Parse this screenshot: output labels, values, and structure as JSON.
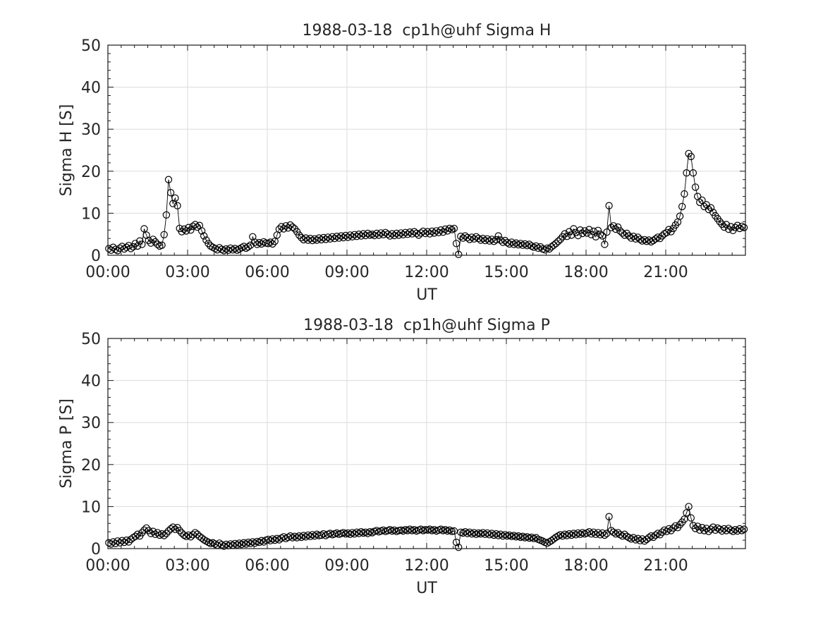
{
  "figure": {
    "background": "#ffffff",
    "colors": {
      "axes": "#1a1a1a",
      "text": "#262626",
      "grid": "#dbdbdb",
      "line": "#000000",
      "marker": "#000000"
    }
  },
  "chart_data": [
    {
      "type": "line-scatter",
      "title": "1988-03-18  cp1h@uhf Sigma H",
      "xlabel": "UT",
      "ylabel": "Sigma H [S]",
      "xlim_minutes": [
        0,
        1440
      ],
      "ylim": [
        0,
        50
      ],
      "xtick_minutes": [
        0,
        180,
        360,
        540,
        720,
        900,
        1080,
        1260
      ],
      "xtick_labels": [
        "00:00",
        "03:00",
        "06:00",
        "09:00",
        "12:00",
        "15:00",
        "18:00",
        "21:00"
      ],
      "xminor_step_minutes": 30,
      "yticks": [
        0,
        10,
        20,
        30,
        40,
        50
      ],
      "yminor_step": 2,
      "grid": true,
      "legend": "none",
      "marker": "open-circle",
      "x_start_minutes": 2,
      "x_step_minutes": 5,
      "values": [
        1.6,
        1.2,
        1.9,
        1.4,
        1.1,
        1.7,
        2.1,
        1.5,
        1.9,
        2.3,
        1.6,
        2.0,
        2.8,
        2.2,
        3.4,
        2.6,
        6.3,
        4.8,
        3.5,
        2.9,
        3.8,
        3.2,
        2.6,
        2.2,
        2.4,
        4.9,
        9.6,
        18.0,
        14.9,
        12.3,
        13.6,
        11.8,
        6.4,
        5.6,
        6.2,
        5.8,
        6.6,
        6.0,
        6.9,
        7.3,
        6.7,
        7.1,
        5.8,
        4.6,
        3.6,
        2.8,
        2.2,
        1.9,
        1.6,
        1.3,
        1.8,
        1.4,
        1.1,
        1.5,
        1.2,
        1.7,
        1.3,
        1.6,
        1.2,
        1.5,
        1.8,
        2.1,
        1.7,
        2.0,
        2.4,
        4.4,
        3.1,
        2.6,
        3.0,
        2.7,
        3.2,
        2.9,
        2.8,
        3.1,
        2.7,
        3.3,
        4.8,
        6.2,
        6.8,
        6.3,
        7.0,
        6.5,
        7.2,
        6.7,
        6.3,
        5.6,
        4.8,
        4.2,
        3.7,
        4.1,
        3.6,
        4.0,
        3.5,
        3.9,
        3.6,
        4.1,
        3.7,
        4.2,
        3.8,
        4.3,
        3.9,
        4.4,
        4.0,
        4.5,
        4.1,
        4.6,
        4.2,
        4.7,
        4.3,
        4.8,
        4.4,
        4.9,
        4.5,
        5.0,
        4.6,
        5.1,
        4.7,
        5.2,
        4.8,
        5.0,
        4.7,
        5.2,
        4.8,
        5.3,
        4.9,
        5.4,
        5.0,
        4.6,
        5.1,
        4.7,
        5.2,
        4.8,
        5.3,
        4.9,
        5.4,
        5.0,
        5.5,
        5.1,
        5.6,
        5.2,
        4.8,
        5.3,
        5.7,
        5.2,
        5.6,
        5.1,
        5.7,
        5.3,
        5.8,
        5.4,
        6.0,
        5.5,
        6.2,
        5.8,
        6.4,
        6.1,
        6.4,
        2.8,
        0.2,
        4.5,
        4.1,
        4.6,
        4.2,
        3.8,
        4.3,
        3.9,
        4.4,
        4.0,
        3.6,
        4.0,
        3.5,
        3.9,
        3.4,
        3.8,
        3.3,
        3.7,
        4.6,
        3.6,
        3.1,
        3.5,
        3.0,
        2.7,
        3.1,
        2.6,
        2.9,
        2.5,
        2.8,
        2.4,
        2.7,
        2.3,
        2.6,
        2.2,
        1.9,
        2.2,
        1.7,
        2.0,
        1.5,
        1.3,
        1.7,
        1.5,
        2.0,
        2.4,
        2.8,
        3.3,
        3.8,
        4.4,
        5.1,
        4.5,
        5.6,
        4.8,
        6.3,
        5.4,
        4.7,
        6.0,
        5.2,
        5.8,
        5.3,
        6.1,
        4.9,
        5.7,
        4.4,
        5.9,
        5.0,
        4.6,
        2.6,
        5.5,
        11.8,
        6.6,
        7.0,
        6.2,
        6.7,
        5.8,
        5.3,
        4.8,
        5.2,
        4.6,
        4.1,
        4.5,
        3.9,
        4.3,
        3.8,
        3.4,
        3.7,
        3.3,
        3.6,
        3.2,
        3.5,
        3.9,
        4.3,
        4.0,
        4.6,
        5.1,
        5.4,
        6.1,
        5.6,
        6.4,
        7.2,
        7.9,
        9.3,
        11.6,
        14.6,
        19.6,
        24.2,
        23.5,
        19.6,
        16.2,
        14.0,
        12.6,
        13.1,
        11.6,
        12.0,
        10.9,
        11.3,
        10.2,
        9.4,
        8.7,
        8.0,
        7.4,
        6.7,
        7.3,
        6.2,
        6.8,
        5.9,
        6.6,
        7.1,
        6.4,
        6.9,
        6.6
      ]
    },
    {
      "type": "line-scatter",
      "title": "1988-03-18  cp1h@uhf Sigma P",
      "xlabel": "UT",
      "ylabel": "Sigma P [S]",
      "xlim_minutes": [
        0,
        1440
      ],
      "ylim": [
        0,
        50
      ],
      "xtick_minutes": [
        0,
        180,
        360,
        540,
        720,
        900,
        1080,
        1260
      ],
      "xtick_labels": [
        "00:00",
        "03:00",
        "06:00",
        "09:00",
        "12:00",
        "15:00",
        "18:00",
        "21:00"
      ],
      "xminor_step_minutes": 30,
      "yticks": [
        0,
        10,
        20,
        30,
        40,
        50
      ],
      "yminor_step": 2,
      "grid": true,
      "legend": "none",
      "marker": "open-circle",
      "x_start_minutes": 2,
      "x_step_minutes": 5,
      "values": [
        1.4,
        1.1,
        1.6,
        1.2,
        1.8,
        1.4,
        1.9,
        1.5,
        2.0,
        1.6,
        2.2,
        2.6,
        2.9,
        3.4,
        3.0,
        3.8,
        4.4,
        4.9,
        4.3,
        3.6,
        4.1,
        3.4,
        3.8,
        3.2,
        3.5,
        3.1,
        3.6,
        4.2,
        4.7,
        5.1,
        4.6,
        5.0,
        4.3,
        3.7,
        3.2,
        2.9,
        3.2,
        2.8,
        3.3,
        3.8,
        3.4,
        2.9,
        2.5,
        2.1,
        1.8,
        1.5,
        1.2,
        1.4,
        1.1,
        0.8,
        1.3,
        0.9,
        0.6,
        1.0,
        0.7,
        1.1,
        0.8,
        1.2,
        0.9,
        1.3,
        1.0,
        1.4,
        1.1,
        1.5,
        1.2,
        1.6,
        1.3,
        1.7,
        1.5,
        1.9,
        1.6,
        2.0,
        2.2,
        1.9,
        2.3,
        2.0,
        2.4,
        2.1,
        2.5,
        2.8,
        2.4,
        2.7,
        3.0,
        2.6,
        2.9,
        2.6,
        3.0,
        2.7,
        3.1,
        2.8,
        3.2,
        2.9,
        3.3,
        3.0,
        3.4,
        3.1,
        3.2,
        3.5,
        3.1,
        3.4,
        3.6,
        3.3,
        3.5,
        3.7,
        3.4,
        3.6,
        3.8,
        3.5,
        3.7,
        3.4,
        3.8,
        3.5,
        3.9,
        3.6,
        4.0,
        3.7,
        3.9,
        3.6,
        4.0,
        3.8,
        4.1,
        4.3,
        4.0,
        4.2,
        4.4,
        4.1,
        4.3,
        4.5,
        4.2,
        4.4,
        4.1,
        4.3,
        4.4,
        4.2,
        4.5,
        4.3,
        4.6,
        4.3,
        4.5,
        4.2,
        4.4,
        4.6,
        4.3,
        4.5,
        4.4,
        4.6,
        4.3,
        4.5,
        4.2,
        4.4,
        4.6,
        4.3,
        4.5,
        4.2,
        4.4,
        4.1,
        4.2,
        1.5,
        0.3,
        3.9,
        3.7,
        4.0,
        3.6,
        3.9,
        3.5,
        3.8,
        3.4,
        3.7,
        3.5,
        3.8,
        3.4,
        3.7,
        3.3,
        3.6,
        3.2,
        3.5,
        3.1,
        3.4,
        3.0,
        3.3,
        3.0,
        3.2,
        2.9,
        3.1,
        2.8,
        3.0,
        2.7,
        2.9,
        2.6,
        2.8,
        2.5,
        2.7,
        2.4,
        2.6,
        2.2,
        2.0,
        1.8,
        1.5,
        1.3,
        1.6,
        1.9,
        2.3,
        2.7,
        3.0,
        3.3,
        3.0,
        3.4,
        3.1,
        3.5,
        3.2,
        3.6,
        3.3,
        3.7,
        3.4,
        3.8,
        3.5,
        3.7,
        4.0,
        3.5,
        3.9,
        3.4,
        3.8,
        3.3,
        3.7,
        3.2,
        3.6,
        7.6,
        4.3,
        3.9,
        3.5,
        3.8,
        3.3,
        3.0,
        3.4,
        2.9,
        2.6,
        2.3,
        2.6,
        2.1,
        2.4,
        1.9,
        2.3,
        1.8,
        2.2,
        2.6,
        3.0,
        2.7,
        3.2,
        3.6,
        3.3,
        3.9,
        4.4,
        4.1,
        4.7,
        4.3,
        4.9,
        5.4,
        5.0,
        5.7,
        6.3,
        7.0,
        8.5,
        10.0,
        7.3,
        5.5,
        4.8,
        5.3,
        4.4,
        5.0,
        4.3,
        4.8,
        4.1,
        4.6,
        5.1,
        4.4,
        4.9,
        4.6,
        4.2,
        4.7,
        4.3,
        4.8,
        4.4,
        4.1,
        4.5,
        4.2,
        4.7,
        4.3,
        4.6
      ]
    }
  ]
}
